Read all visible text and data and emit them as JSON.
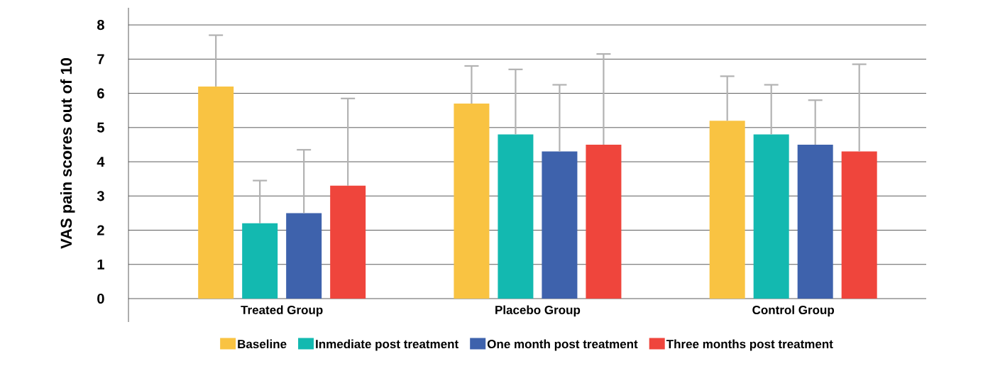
{
  "chart_data": {
    "type": "bar",
    "ylabel": "VAS pain scores out of 10",
    "categories": [
      "Treated Group",
      "Placebo Group",
      "Control Group"
    ],
    "series": [
      {
        "name": "Baseline",
        "color": "#f9c342",
        "values": [
          6.2,
          5.7,
          5.2
        ],
        "errors": [
          [
            6.2,
            7.7
          ],
          [
            5.7,
            6.8
          ],
          [
            5.2,
            6.5
          ]
        ]
      },
      {
        "name": "Inmediate post treatment",
        "color": "#13b9b0",
        "values": [
          2.2,
          4.8,
          4.8
        ],
        "errors": [
          [
            2.2,
            3.45
          ],
          [
            4.8,
            6.7
          ],
          [
            4.8,
            6.25
          ]
        ]
      },
      {
        "name": "One month post treatment",
        "color": "#3e62ac",
        "values": [
          2.5,
          4.3,
          4.5
        ],
        "errors": [
          [
            2.5,
            4.35
          ],
          [
            4.3,
            6.25
          ],
          [
            4.5,
            5.8
          ]
        ]
      },
      {
        "name": "Three months post treatment",
        "color": "#ef453c",
        "values": [
          3.3,
          4.5,
          4.3
        ],
        "errors": [
          [
            3.3,
            5.85
          ],
          [
            4.5,
            7.15
          ],
          [
            4.3,
            6.85
          ]
        ]
      }
    ],
    "ylim": [
      0,
      8.5
    ],
    "yticks": [
      0,
      1,
      2,
      3,
      4,
      5,
      6,
      7,
      8
    ],
    "grid": "y",
    "legend": "bottom"
  }
}
